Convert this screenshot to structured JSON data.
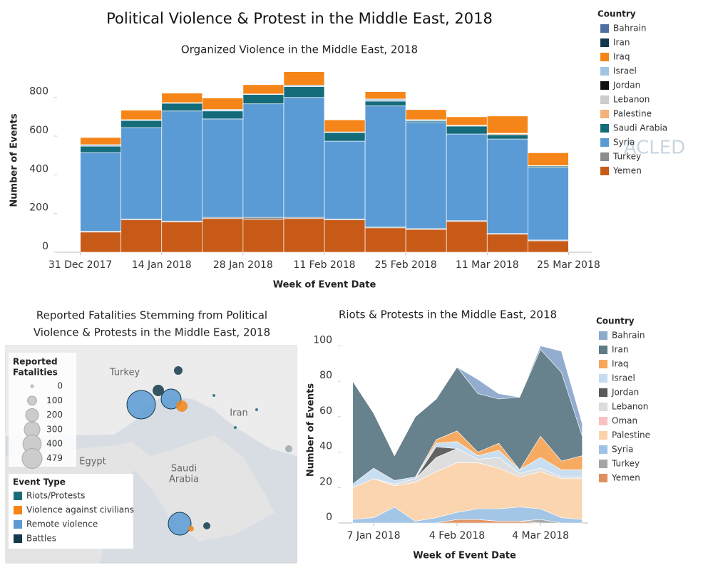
{
  "title": "Political Violence & Protest in the Middle East, 2018",
  "watermark": "ACLED",
  "chart_data": [
    {
      "type": "bar",
      "stacked": true,
      "title": "Organized Violence in the Middle East, 2018",
      "x_label": "Week of Event Date",
      "y_label": "Number of Events",
      "legend_title": "Country",
      "legend": "right",
      "x": [
        "2017-12-31",
        "2018-01-07",
        "2018-01-14",
        "2018-01-21",
        "2018-01-28",
        "2018-02-04",
        "2018-02-11",
        "2018-02-18",
        "2018-02-25",
        "2018-03-04",
        "2018-03-11",
        "2018-03-18"
      ],
      "xlim": [
        "2017-12-27",
        "2018-03-29"
      ],
      "xticks": [
        {
          "value": "2017-12-31",
          "label": "31 Dec 2017"
        },
        {
          "value": "2018-01-14",
          "label": "14 Jan 2018"
        },
        {
          "value": "2018-01-28",
          "label": "28 Jan 2018"
        },
        {
          "value": "2018-02-11",
          "label": "11 Feb 2018"
        },
        {
          "value": "2018-02-25",
          "label": "25 Feb 2018"
        },
        {
          "value": "2018-03-11",
          "label": "11 Mar 2018"
        },
        {
          "value": "2018-03-25",
          "label": "25 Mar 2018"
        }
      ],
      "ylim": [
        0,
        950
      ],
      "yticks": [
        0,
        200,
        400,
        600,
        800
      ],
      "series": [
        {
          "name": "Bahrain",
          "color": "#4e6fa3",
          "values": [
            0,
            0,
            0,
            0,
            0,
            0,
            0,
            0,
            0,
            0,
            0,
            0
          ]
        },
        {
          "name": "Iran",
          "color": "#14394a",
          "values": [
            0,
            0,
            0,
            0,
            0,
            0,
            0,
            0,
            0,
            0,
            0,
            0
          ]
        },
        {
          "name": "Iraq",
          "color": "#f58518",
          "values": [
            37,
            49,
            49,
            59,
            48,
            70,
            62,
            38,
            52,
            44,
            89,
            66
          ]
        },
        {
          "name": "Israel",
          "color": "#a0c4e4",
          "values": [
            8,
            3,
            3,
            7,
            3,
            7,
            3,
            11,
            7,
            3,
            3,
            3
          ]
        },
        {
          "name": "Jordan",
          "color": "#111111",
          "values": [
            0,
            0,
            0,
            0,
            0,
            0,
            0,
            0,
            0,
            0,
            0,
            0
          ]
        },
        {
          "name": "Lebanon",
          "color": "#cccccc",
          "values": [
            0,
            1,
            0,
            1,
            0,
            0,
            0,
            0,
            0,
            1,
            0,
            0
          ]
        },
        {
          "name": "Palestine",
          "color": "#f2b27a",
          "values": [
            0,
            0,
            0,
            0,
            0,
            0,
            0,
            0,
            0,
            0,
            5,
            0
          ]
        },
        {
          "name": "Saudi Arabia",
          "color": "#146b7a",
          "values": [
            33,
            37,
            40,
            41,
            48,
            56,
            45,
            25,
            8,
            41,
            22,
            8
          ]
        },
        {
          "name": "Syria",
          "color": "#5b9bd5",
          "values": [
            406,
            472,
            569,
            509,
            587,
            620,
            402,
            626,
            548,
            448,
            488,
            374
          ]
        },
        {
          "name": "Turkey",
          "color": "#8c8c8c",
          "values": [
            5,
            5,
            5,
            6,
            10,
            6,
            5,
            4,
            4,
            4,
            4,
            4
          ]
        },
        {
          "name": "Yemen",
          "color": "#c85a17",
          "values": [
            104,
            167,
            156,
            174,
            170,
            174,
            167,
            126,
            118,
            159,
            93,
            59
          ]
        }
      ]
    },
    {
      "type": "map",
      "title": [
        "Reported Fatalities Stemming from Political",
        "Violence & Protests in the Middle East, 2018"
      ],
      "size_legend_title": [
        "Reported",
        "Fatalities"
      ],
      "sizes": [
        0,
        100,
        200,
        300,
        400,
        479
      ],
      "color_legend_title": "Event Type",
      "event_types": [
        {
          "name": "Riots/Protests",
          "color": "#1a6b7c"
        },
        {
          "name": "Violence against civilians",
          "color": "#f58518"
        },
        {
          "name": "Remote violence",
          "color": "#5b9bd5"
        },
        {
          "name": "Battles",
          "color": "#14394a"
        }
      ],
      "places": [
        [
          "Turkey"
        ],
        [
          "Egypt"
        ],
        [
          "Saudi",
          "Arabia"
        ],
        [
          "Iran"
        ]
      ]
    },
    {
      "type": "area",
      "stacked": true,
      "title": "Riots & Protests in the Middle East, 2018",
      "x_label": "Week of Event Date",
      "y_label": "Number of Events",
      "legend_title": "Country",
      "legend": "right",
      "x": [
        "2017-12-31",
        "2018-01-07",
        "2018-01-14",
        "2018-01-21",
        "2018-01-28",
        "2018-02-04",
        "2018-02-11",
        "2018-02-18",
        "2018-02-25",
        "2018-03-04",
        "2018-03-11",
        "2018-03-18"
      ],
      "xlim": [
        "2017-12-27",
        "2018-03-20"
      ],
      "xticks": [
        {
          "value": "2018-01-07",
          "label": "7 Jan 2018"
        },
        {
          "value": "2018-02-04",
          "label": "4 Feb 2018"
        },
        {
          "value": "2018-03-04",
          "label": "4 Mar 2018"
        }
      ],
      "ylim": [
        0,
        105
      ],
      "yticks": [
        0,
        20,
        40,
        60,
        80,
        100
      ],
      "series": [
        {
          "name": "Bahrain",
          "color": "#8da9cc",
          "values": [
            0,
            0,
            0,
            0,
            0,
            0,
            8,
            3,
            0,
            2,
            12,
            7
          ]
        },
        {
          "name": "Iran",
          "color": "#5f7b86",
          "values": [
            58,
            31,
            14,
            34,
            23,
            36,
            33,
            25,
            41,
            49,
            50,
            11
          ]
        },
        {
          "name": "Iraq",
          "color": "#f7a65a",
          "values": [
            0,
            0,
            0,
            0,
            2,
            6,
            2,
            4,
            0,
            12,
            5,
            8
          ]
        },
        {
          "name": "Israel",
          "color": "#c6dcf0",
          "values": [
            2,
            6,
            2,
            1,
            2,
            4,
            2,
            4,
            2,
            6,
            4,
            4
          ]
        },
        {
          "name": "Jordan",
          "color": "#5a5a5a",
          "values": [
            0,
            0,
            0,
            0,
            6,
            0,
            0,
            0,
            0,
            0,
            0,
            0
          ]
        },
        {
          "name": "Lebanon",
          "color": "#dcdcdc",
          "values": [
            0,
            0,
            1,
            2,
            8,
            8,
            2,
            6,
            2,
            2,
            1,
            1
          ]
        },
        {
          "name": "Oman",
          "color": "#f9c0c0",
          "values": [
            0,
            0,
            0,
            0,
            0,
            0,
            0,
            0,
            0,
            0,
            0,
            0
          ]
        },
        {
          "name": "Palestine",
          "color": "#fbd3ab",
          "values": [
            18,
            22,
            12,
            22,
            26,
            28,
            26,
            23,
            17,
            21,
            22,
            23
          ]
        },
        {
          "name": "Syria",
          "color": "#9ec3e6",
          "values": [
            2,
            3,
            9,
            1,
            3,
            4,
            6,
            7,
            8,
            6,
            3,
            2
          ]
        },
        {
          "name": "Turkey",
          "color": "#a5a5a5",
          "values": [
            0,
            0,
            0,
            0,
            0,
            0,
            0,
            0,
            0,
            2,
            0,
            0
          ]
        },
        {
          "name": "Yemen",
          "color": "#e09060",
          "values": [
            0,
            0,
            0,
            0,
            0,
            2,
            2,
            1,
            1,
            0,
            0,
            0
          ]
        }
      ]
    }
  ]
}
